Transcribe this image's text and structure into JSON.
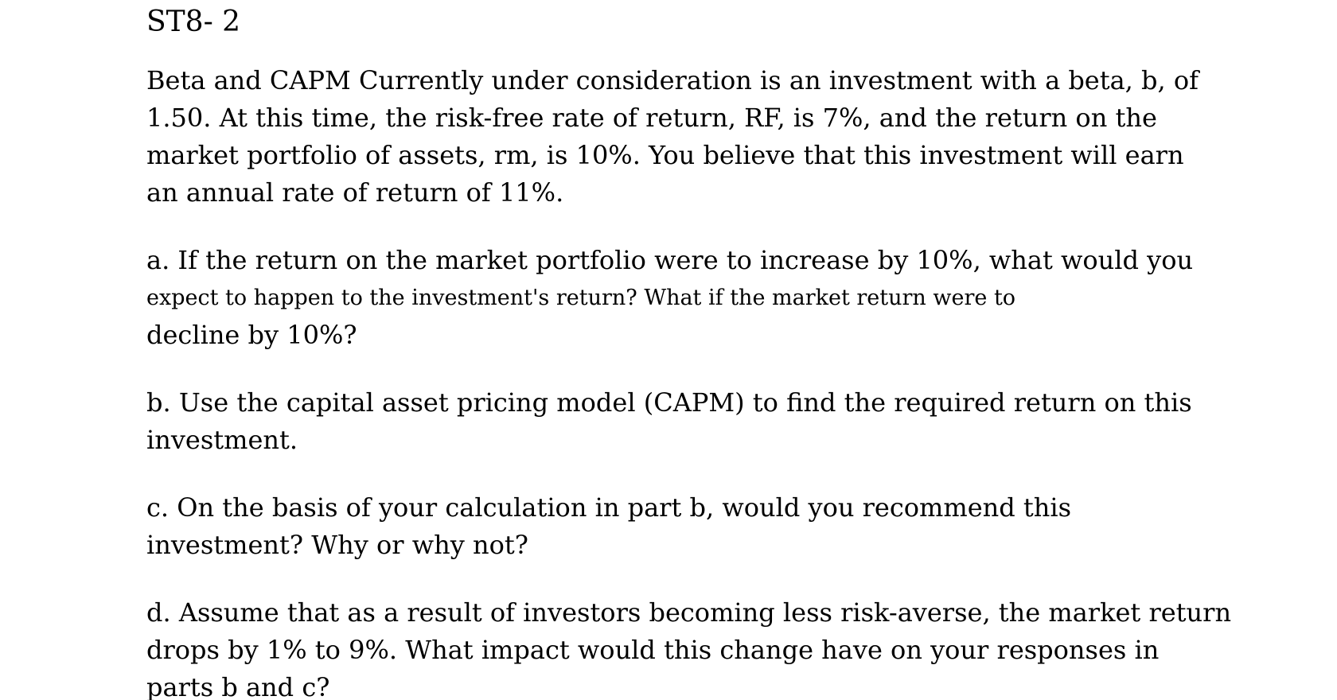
{
  "page": {
    "title": "ST8- 2",
    "paragraphs": {
      "statement": {
        "lines": [
          "Beta and CAPM Currently under consideration is an investment with a beta, b, of",
          "1.50. At this time, the risk-free rate of return, RF, is 7%, and the return on the",
          "market portfolio of assets, rm, is 10%. You believe that this investment will earn",
          "an annual rate of return of 11%."
        ]
      },
      "part_a": {
        "lines": [
          "a. If the return on the market portfolio were to increase by 10%, what would you",
          "expect to happen to the investment's return? What if the market return were to",
          "decline by 10%?"
        ]
      },
      "part_b": {
        "lines": [
          "b. Use the capital asset pricing model (CAPM) to find the required return on this",
          "investment."
        ]
      },
      "part_c": {
        "lines": [
          "c. On the basis of your calculation in part b, would you recommend this",
          "investment? Why or why not?"
        ]
      },
      "part_d": {
        "lines": [
          "d. Assume that as a result of investors becoming less risk-averse, the market return",
          "drops by 1% to 9%. What impact would this change have on your responses in",
          "parts b and c?"
        ]
      }
    }
  }
}
